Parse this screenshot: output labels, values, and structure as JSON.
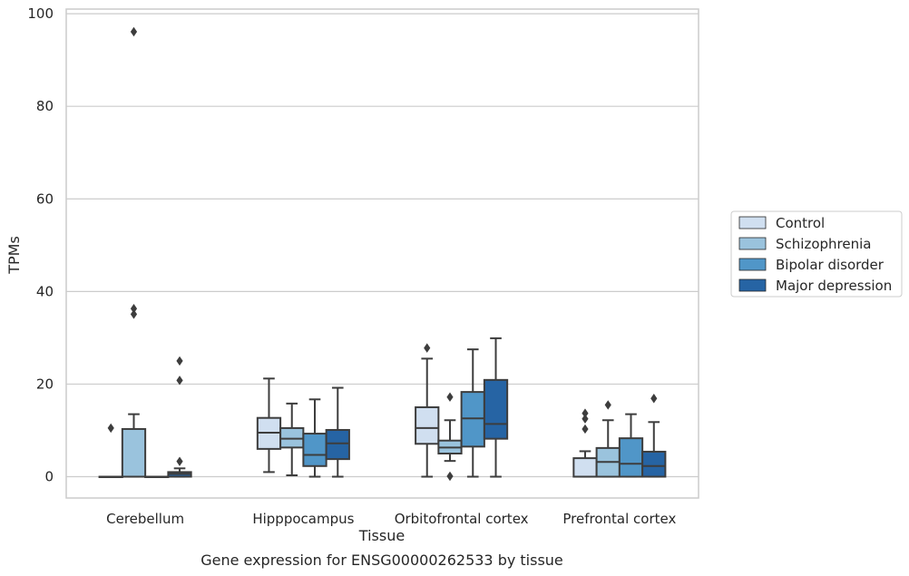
{
  "chart_data": {
    "type": "boxplot",
    "title": "",
    "xlabel": "Tissue",
    "ylabel": "TPMs",
    "caption": "Gene expression for ENSG00000262533 by tissue",
    "ylim": [
      -4.6,
      101
    ],
    "yticks": [
      0,
      20,
      40,
      60,
      80,
      100
    ],
    "grid": "horizontal",
    "legend_position": "right",
    "categories": [
      "Cerebellum",
      "Hipppocampus",
      "Orbitofrontal cortex",
      "Prefrontal cortex"
    ],
    "series": [
      {
        "name": "Control",
        "color": "#d0dff0",
        "boxes": [
          {
            "q1": 0,
            "median": 0,
            "q3": 0,
            "whisker_low": 0,
            "whisker_high": 0,
            "outliers": [
              10.5
            ]
          },
          {
            "q1": 6.0,
            "median": 9.5,
            "q3": 12.7,
            "whisker_low": 1.0,
            "whisker_high": 21.2,
            "outliers": []
          },
          {
            "q1": 7.1,
            "median": 10.5,
            "q3": 15.0,
            "whisker_low": 0,
            "whisker_high": 25.5,
            "outliers": [
              27.8
            ]
          },
          {
            "q1": 0,
            "median": 0,
            "q3": 4.0,
            "whisker_low": 0,
            "whisker_high": 5.5,
            "outliers": [
              10.3,
              12.5,
              13.7
            ]
          }
        ]
      },
      {
        "name": "Schizophrenia",
        "color": "#9ac3dd",
        "boxes": [
          {
            "q1": 0,
            "median": 0,
            "q3": 10.3,
            "whisker_low": 0,
            "whisker_high": 13.5,
            "outliers": [
              35.1,
              36.3,
              96.1
            ]
          },
          {
            "q1": 6.3,
            "median": 8.2,
            "q3": 10.5,
            "whisker_low": 0.3,
            "whisker_high": 15.8,
            "outliers": []
          },
          {
            "q1": 5.0,
            "median": 6.3,
            "q3": 7.8,
            "whisker_low": 3.4,
            "whisker_high": 12.2,
            "outliers": [
              0.1,
              17.2
            ]
          },
          {
            "q1": 0,
            "median": 3.2,
            "q3": 6.2,
            "whisker_low": 0,
            "whisker_high": 12.2,
            "outliers": [
              15.5
            ]
          }
        ]
      },
      {
        "name": "Bipolar disorder",
        "color": "#5096c8",
        "boxes": [
          {
            "q1": 0,
            "median": 0,
            "q3": 0,
            "whisker_low": 0,
            "whisker_high": 0,
            "outliers": []
          },
          {
            "q1": 2.3,
            "median": 4.7,
            "q3": 9.3,
            "whisker_low": 0,
            "whisker_high": 16.7,
            "outliers": []
          },
          {
            "q1": 6.5,
            "median": 12.6,
            "q3": 18.3,
            "whisker_low": 0,
            "whisker_high": 27.5,
            "outliers": []
          },
          {
            "q1": 0,
            "median": 2.8,
            "q3": 8.3,
            "whisker_low": 0,
            "whisker_high": 13.5,
            "outliers": []
          }
        ]
      },
      {
        "name": "Major depression",
        "color": "#2664a4",
        "boxes": [
          {
            "q1": 0,
            "median": 0.6,
            "q3": 1.0,
            "whisker_low": 0,
            "whisker_high": 1.8,
            "outliers": [
              3.3,
              20.8,
              25.0
            ]
          },
          {
            "q1": 3.8,
            "median": 7.2,
            "q3": 10.1,
            "whisker_low": 0,
            "whisker_high": 19.2,
            "outliers": []
          },
          {
            "q1": 8.2,
            "median": 11.4,
            "q3": 20.9,
            "whisker_low": 0,
            "whisker_high": 29.9,
            "outliers": []
          },
          {
            "q1": 0,
            "median": 2.3,
            "q3": 5.4,
            "whisker_low": 0,
            "whisker_high": 11.8,
            "outliers": [
              16.9
            ]
          }
        ]
      }
    ]
  }
}
